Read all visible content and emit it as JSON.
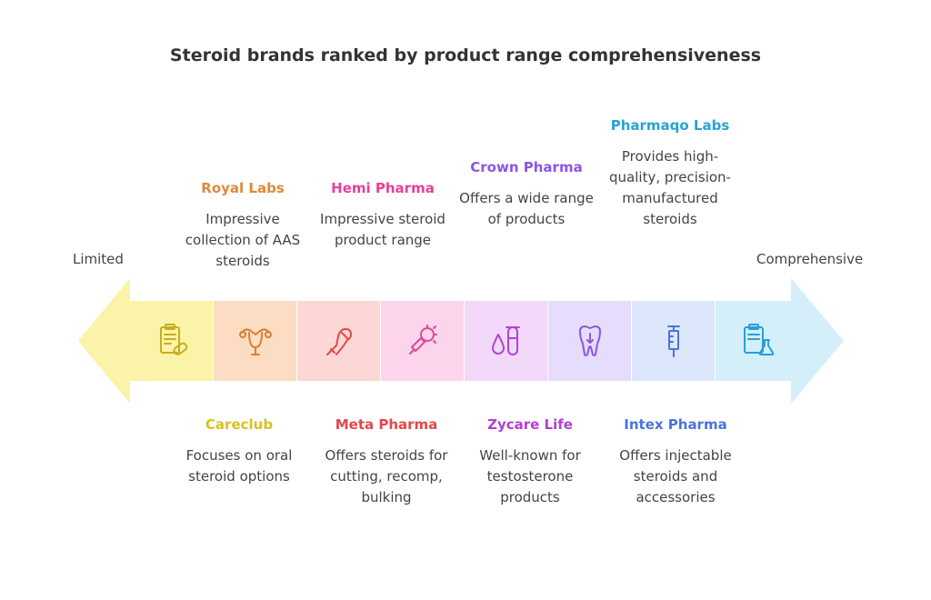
{
  "title": "Steroid brands ranked by product range comprehensiveness",
  "scale": {
    "left_label": "Limited",
    "right_label": "Comprehensive"
  },
  "top_items": [
    {
      "name": "Royal Labs",
      "desc": "Impressive collection of AAS steroids",
      "color": "#e0883a"
    },
    {
      "name": "Hemi Pharma",
      "desc": "Impressive steroid product range",
      "color": "#e4419a"
    },
    {
      "name": "Crown Pharma",
      "desc": "Offers a wide range of products",
      "color": "#8d55e3"
    },
    {
      "name": "Pharmaqo Labs",
      "desc": "Provides high-quality, precision-manufactured steroids",
      "color": "#27a3d7"
    }
  ],
  "bottom_items": [
    {
      "name": "Careclub",
      "desc": "Focuses on oral steroid options",
      "color": "#d8c21f"
    },
    {
      "name": "Meta Pharma",
      "desc": "Offers steroids for cutting, recomp, bulking",
      "color": "#e4474c"
    },
    {
      "name": "Zycare Life",
      "desc": "Well-known for testosterone products",
      "color": "#b23fd4"
    },
    {
      "name": "Intex Pharma",
      "desc": "Offers injectable steroids and accessories",
      "color": "#4a74dd"
    }
  ],
  "segments": [
    {
      "icon": "clipboard-pill-icon",
      "fill": "#fbf3a8",
      "stroke": "#c9ad1c"
    },
    {
      "icon": "uterus-icon",
      "fill": "#fcdcc3",
      "stroke": "#d97f34"
    },
    {
      "icon": "flexed-arm-icon",
      "fill": "#fdd7d6",
      "stroke": "#df4a4a"
    },
    {
      "icon": "virus-syringe-icon",
      "fill": "#fcd4ec",
      "stroke": "#dc4a9c"
    },
    {
      "icon": "drop-test-tube-icon",
      "fill": "#f2d9fa",
      "stroke": "#b244d6"
    },
    {
      "icon": "tooth-icon",
      "fill": "#e6dcfb",
      "stroke": "#8a55e3"
    },
    {
      "icon": "syringe-icon",
      "fill": "#dde7fb",
      "stroke": "#4a73db"
    },
    {
      "icon": "clipboard-flask-icon",
      "fill": "#d4eefa",
      "stroke": "#27a1d6"
    }
  ]
}
